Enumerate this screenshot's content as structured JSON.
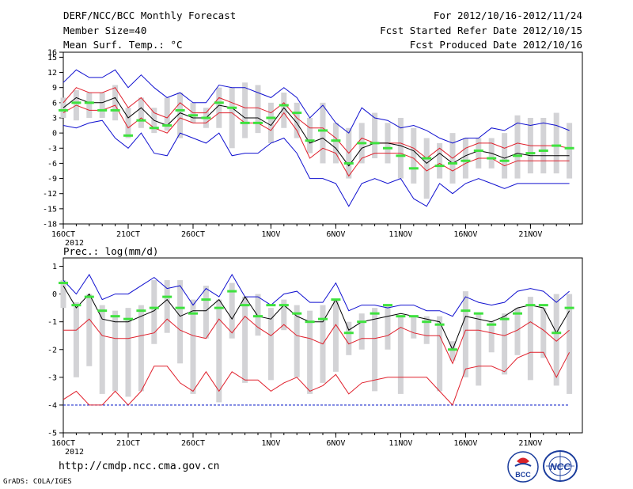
{
  "header": {
    "title": "DERF/NCC/BCC Monthly Forecast",
    "member_size": "Member Size=40",
    "variable_top": "Mean Surf. Temp.: °C",
    "period": "For 2012/10/16-2012/11/24",
    "started": "Fcst Started Refer Date 2012/10/15",
    "produced": "Fcst Produced Date 2012/10/16"
  },
  "footer": {
    "url": "http://cmdp.ncc.cma.gov.cn",
    "credit": "GrADS: COLA/IGES",
    "logo_bcc": "BCC",
    "logo_ncc": "NCC"
  },
  "colors": {
    "ensemble_box": "#d3d3d6",
    "mean_line": "#000000",
    "spread_line": "#e0202c",
    "extreme_line": "#1010d0",
    "observation": "#3ee23e",
    "floor_line": "#1c2ccc"
  },
  "chart_data": [
    {
      "type": "line",
      "title": "Mean Surf. Temp.: °C",
      "xlabel": "",
      "ylabel": "°C",
      "ylim": [
        -18,
        16
      ],
      "yticks": [
        -18,
        -15,
        -12,
        -9,
        -6,
        -3,
        0,
        3,
        6,
        9,
        12,
        15,
        16
      ],
      "xlim": [
        16,
        56
      ],
      "xticks": [
        {
          "day": 16,
          "label": "16OCT"
        },
        {
          "day": 21,
          "label": "21OCT"
        },
        {
          "day": 26,
          "label": "26OCT"
        },
        {
          "day": 32,
          "label": "1NOV"
        },
        {
          "day": 37,
          "label": "6NOV"
        },
        {
          "day": 42,
          "label": "11NOV"
        },
        {
          "day": 47,
          "label": "16NOV"
        },
        {
          "day": 52,
          "label": "21NOV"
        }
      ],
      "year_label": "2012",
      "x": [
        16,
        17,
        18,
        19,
        20,
        21,
        22,
        23,
        24,
        25,
        26,
        27,
        28,
        29,
        30,
        31,
        32,
        33,
        34,
        35,
        36,
        37,
        38,
        39,
        40,
        41,
        42,
        43,
        44,
        45,
        46,
        47,
        48,
        49,
        50,
        51,
        52,
        53,
        54,
        55
      ],
      "series": [
        {
          "name": "max",
          "values": [
            10,
            12.5,
            11,
            11,
            12.5,
            9,
            11.5,
            9,
            7,
            8,
            6,
            6,
            9.5,
            9,
            9,
            8,
            7,
            9,
            7,
            3,
            5.5,
            2,
            0,
            5,
            3,
            2.5,
            1,
            1.5,
            0.5,
            -1,
            -2,
            -1,
            -1,
            1,
            0.5,
            2,
            1.5,
            2,
            1.5,
            0.5
          ]
        },
        {
          "name": "upper",
          "values": [
            6,
            9,
            8,
            8,
            9,
            5,
            7,
            4,
            3,
            6,
            4,
            4,
            7,
            6,
            5,
            5,
            4,
            6,
            3,
            1,
            1,
            -1,
            -4,
            -1,
            -2,
            -2,
            -2,
            -3,
            -5,
            -3,
            -5,
            -3,
            -2,
            -2,
            -3,
            -2,
            -2.5,
            -2.5,
            -2.5,
            -3
          ]
        },
        {
          "name": "mean",
          "values": [
            5,
            7,
            6,
            6,
            7,
            3,
            5,
            2.5,
            1.5,
            4,
            3,
            3,
            5.5,
            5,
            3,
            3,
            1.5,
            5,
            2,
            -2,
            -1,
            -3,
            -6.5,
            -3,
            -2,
            -2,
            -2.5,
            -3.5,
            -6,
            -4,
            -6,
            -4.5,
            -3.5,
            -4,
            -5,
            -4,
            -4.5,
            -4.5,
            -4.5,
            -4.5
          ]
        },
        {
          "name": "lower",
          "values": [
            4,
            5.5,
            4.5,
            4.5,
            5.5,
            1,
            3,
            1,
            0,
            3,
            2,
            2,
            4,
            4,
            2,
            2,
            0.5,
            4,
            0.5,
            -5,
            -3,
            -4,
            -8.5,
            -5,
            -4,
            -4,
            -4,
            -5,
            -7.5,
            -6,
            -7.5,
            -6,
            -5,
            -5,
            -6.5,
            -5.5,
            -5.5,
            -5.5,
            -5.5,
            -5.5
          ]
        },
        {
          "name": "min",
          "values": [
            1.5,
            1,
            2,
            2.5,
            -1,
            -3,
            0,
            -4,
            -4.5,
            0,
            -1,
            -2,
            0,
            -4.5,
            -4,
            -4,
            -2,
            -1,
            -4,
            -9,
            -9,
            -10,
            -14.5,
            -10,
            -9,
            -10,
            -9,
            -13,
            -14.5,
            -10,
            -12,
            -10,
            -9,
            -10,
            -11,
            -10,
            -10,
            -10,
            -10,
            -10
          ]
        }
      ],
      "boxes": [
        {
          "low": 3,
          "high": 7
        },
        {
          "low": 2.5,
          "high": 8.5
        },
        {
          "low": 3,
          "high": 8
        },
        {
          "low": 3,
          "high": 8
        },
        {
          "low": 2.5,
          "high": 9.5
        },
        {
          "low": -1,
          "high": 5
        },
        {
          "low": 1,
          "high": 7
        },
        {
          "low": 0,
          "high": 5
        },
        {
          "low": 0.5,
          "high": 7
        },
        {
          "low": -1,
          "high": 8
        },
        {
          "low": 2,
          "high": 6
        },
        {
          "low": 1,
          "high": 5
        },
        {
          "low": 1,
          "high": 9
        },
        {
          "low": -3,
          "high": 9
        },
        {
          "low": -1,
          "high": 10
        },
        {
          "low": 0,
          "high": 9.5
        },
        {
          "low": -2,
          "high": 6
        },
        {
          "low": 1,
          "high": 8
        },
        {
          "low": -1,
          "high": 6
        },
        {
          "low": -4,
          "high": 3
        },
        {
          "low": -6,
          "high": 6
        },
        {
          "low": -6,
          "high": 2
        },
        {
          "low": -9,
          "high": 1
        },
        {
          "low": -6,
          "high": 2
        },
        {
          "low": -5,
          "high": 4
        },
        {
          "low": -6,
          "high": 2
        },
        {
          "low": -9,
          "high": 3
        },
        {
          "low": -10,
          "high": 1
        },
        {
          "low": -13,
          "high": -1
        },
        {
          "low": -9,
          "high": -2
        },
        {
          "low": -10,
          "high": 0
        },
        {
          "low": -9,
          "high": -1
        },
        {
          "low": -7,
          "high": -1
        },
        {
          "low": -7,
          "high": -1
        },
        {
          "low": -9,
          "high": 0
        },
        {
          "low": -9,
          "high": 3.5
        },
        {
          "low": -8,
          "high": 3
        },
        {
          "low": -8,
          "high": 3
        },
        {
          "low": -8,
          "high": 4
        },
        {
          "low": -9,
          "high": 2
        }
      ],
      "observed": [
        4.5,
        6,
        6,
        4.5,
        4.5,
        -0.5,
        2.5,
        1,
        1.5,
        4.5,
        3.5,
        3,
        6,
        5,
        2,
        2,
        3,
        5.5,
        4,
        -1.5,
        0.5,
        -1.5,
        -6,
        -2,
        -2,
        -3,
        -4.5,
        -7,
        -5,
        -6.5,
        -6,
        -5.5,
        -3.5,
        -5,
        -5.5,
        -4.5,
        -4,
        -3.5,
        -2.5,
        -3
      ]
    },
    {
      "type": "line",
      "title": "Prec.: log(mm/d)",
      "xlabel": "",
      "ylabel": "log(mm/d)",
      "ylim": [
        -5,
        1.3
      ],
      "yticks": [
        -5,
        -4,
        -3,
        -2,
        -1,
        0,
        1
      ],
      "xlim": [
        16,
        56
      ],
      "xticks": [
        {
          "day": 16,
          "label": "16OCT"
        },
        {
          "day": 21,
          "label": "21OCT"
        },
        {
          "day": 26,
          "label": "26OCT"
        },
        {
          "day": 32,
          "label": "1NOV"
        },
        {
          "day": 37,
          "label": "6NOV"
        },
        {
          "day": 42,
          "label": "11NOV"
        },
        {
          "day": 47,
          "label": "16NOV"
        },
        {
          "day": 52,
          "label": "21NOV"
        }
      ],
      "year_label": "2012",
      "x": [
        16,
        17,
        18,
        19,
        20,
        21,
        22,
        23,
        24,
        25,
        26,
        27,
        28,
        29,
        30,
        31,
        32,
        33,
        34,
        35,
        36,
        37,
        38,
        39,
        40,
        41,
        42,
        43,
        44,
        45,
        46,
        47,
        48,
        49,
        50,
        51,
        52,
        53,
        54,
        55
      ],
      "series": [
        {
          "name": "max",
          "values": [
            0.5,
            0,
            0.7,
            -0.2,
            0,
            0,
            0.3,
            0.6,
            0.2,
            0.3,
            -0.4,
            0.2,
            -0.1,
            0.7,
            -0.1,
            -0.1,
            -0.4,
            0,
            0.1,
            -0.3,
            -0.3,
            0.4,
            -0.6,
            -0.4,
            -0.4,
            -0.5,
            -0.4,
            -0.4,
            -0.6,
            -0.6,
            -0.8,
            -0.1,
            -0.3,
            -0.4,
            -0.3,
            0.1,
            0.2,
            0.1,
            -0.3,
            0.1
          ]
        },
        {
          "name": "mean",
          "values": [
            0.3,
            -0.5,
            0,
            -0.9,
            -1,
            -1,
            -0.8,
            -0.6,
            -0.2,
            -0.8,
            -0.6,
            -0.6,
            -0.2,
            -0.9,
            -0.1,
            -0.8,
            -0.9,
            -0.4,
            -0.8,
            -1,
            -1,
            -0.2,
            -1.3,
            -1,
            -0.9,
            -0.8,
            -0.7,
            -0.8,
            -0.9,
            -1,
            -2,
            -0.8,
            -0.9,
            -1,
            -0.8,
            -0.5,
            -0.4,
            -0.5,
            -1.4,
            -0.6
          ]
        },
        {
          "name": "upper",
          "values": [
            -1.3,
            -1.3,
            -0.9,
            -1.5,
            -1.6,
            -1.6,
            -1.5,
            -1.4,
            -0.9,
            -1.3,
            -1.5,
            -1.6,
            -0.9,
            -1.4,
            -0.8,
            -1.2,
            -1.5,
            -1.1,
            -1.5,
            -1.6,
            -1.8,
            -1.1,
            -1.8,
            -1.6,
            -1.6,
            -1.5,
            -1.2,
            -1.4,
            -1.5,
            -1.5,
            -2.5,
            -1.3,
            -1.3,
            -1.4,
            -1.5,
            -1.3,
            -1,
            -1.3,
            -1.7,
            -1.3
          ]
        },
        {
          "name": "lower",
          "values": [
            -3.8,
            -3.5,
            -4,
            -4,
            -3.5,
            -4,
            -3.5,
            -2.6,
            -2.6,
            -3.2,
            -3.5,
            -2.8,
            -3.5,
            -2.8,
            -3.1,
            -3.1,
            -3.5,
            -3.2,
            -3,
            -3.5,
            -3.3,
            -2.9,
            -3.6,
            -3.2,
            -3.1,
            -3,
            -3,
            -3,
            -3,
            -3.5,
            -4,
            -2.7,
            -2.6,
            -2.6,
            -2.8,
            -2.3,
            -2.1,
            -2.1,
            -3,
            -2.1
          ]
        },
        {
          "name": "min",
          "values": [
            -4,
            -4,
            -4,
            -4,
            -4,
            -4,
            -4,
            -4,
            -4,
            -4,
            -4,
            -4,
            -4,
            -4,
            -4,
            -4,
            -4,
            -4,
            -4,
            -4,
            -4,
            -4,
            -4,
            -4,
            -4,
            -4,
            -4,
            -4,
            -4,
            -4,
            -4,
            -4,
            -4,
            -4,
            -4,
            -4,
            -4,
            -4,
            -4,
            -4
          ]
        }
      ],
      "boxes": [
        {
          "low": -0.5,
          "high": 0.5
        },
        {
          "low": -3,
          "high": -0.3
        },
        {
          "low": -2.6,
          "high": 0
        },
        {
          "low": -3.6,
          "high": -0.4
        },
        {
          "low": -3.5,
          "high": -0.6
        },
        {
          "low": -3.7,
          "high": -0.5
        },
        {
          "low": -3.5,
          "high": -0.4
        },
        {
          "low": -1.8,
          "high": 0.5
        },
        {
          "low": -1.4,
          "high": 0.5
        },
        {
          "low": -2.5,
          "high": 0.5
        },
        {
          "low": -3.6,
          "high": -0.2
        },
        {
          "low": -1.6,
          "high": 0.3
        },
        {
          "low": -3.9,
          "high": -0.2
        },
        {
          "low": -1.6,
          "high": 0.4
        },
        {
          "low": -3.2,
          "high": -0.1
        },
        {
          "low": -1.5,
          "high": 0
        },
        {
          "low": -3.1,
          "high": -0.5
        },
        {
          "low": -1.3,
          "high": -0.2
        },
        {
          "low": -3,
          "high": -0.4
        },
        {
          "low": -3.6,
          "high": -0.6
        },
        {
          "low": -3.2,
          "high": -0.4
        },
        {
          "low": -2.8,
          "high": -0.2
        },
        {
          "low": -2.2,
          "high": -1
        },
        {
          "low": -2,
          "high": -0.7
        },
        {
          "low": -3.5,
          "high": -0.5
        },
        {
          "low": -2,
          "high": -0.4
        },
        {
          "low": -3.6,
          "high": -0.8
        },
        {
          "low": -1.6,
          "high": -0.8
        },
        {
          "low": -1.8,
          "high": -0.8
        },
        {
          "low": -3.5,
          "high": -0.8
        },
        {
          "low": -2.4,
          "high": -1.7
        },
        {
          "low": -3,
          "high": 0.1
        },
        {
          "low": -3.3,
          "high": -0.7
        },
        {
          "low": -2.1,
          "high": -1
        },
        {
          "low": -2.9,
          "high": -0.7
        },
        {
          "low": -2.2,
          "high": -0.5
        },
        {
          "low": -3.1,
          "high": -0.1
        },
        {
          "low": -2.3,
          "high": -0.5
        },
        {
          "low": -3.3,
          "high": 0
        },
        {
          "low": -3.6,
          "high": 0
        }
      ],
      "observed": [
        0.4,
        -0.4,
        -0.1,
        -0.6,
        -0.8,
        -0.9,
        -0.6,
        -0.5,
        -0.1,
        -0.5,
        -0.7,
        -0.2,
        -0.5,
        0.1,
        -0.4,
        -0.8,
        -0.4,
        -0.4,
        -0.7,
        -1,
        -0.9,
        -0.2,
        -1.4,
        -1,
        -0.7,
        -0.4,
        -0.8,
        -0.8,
        -1,
        -1.1,
        -2,
        -0.6,
        -0.7,
        -1.1,
        -0.9,
        -0.7,
        -0.4,
        -0.4,
        -1.4,
        -0.5
      ]
    }
  ]
}
